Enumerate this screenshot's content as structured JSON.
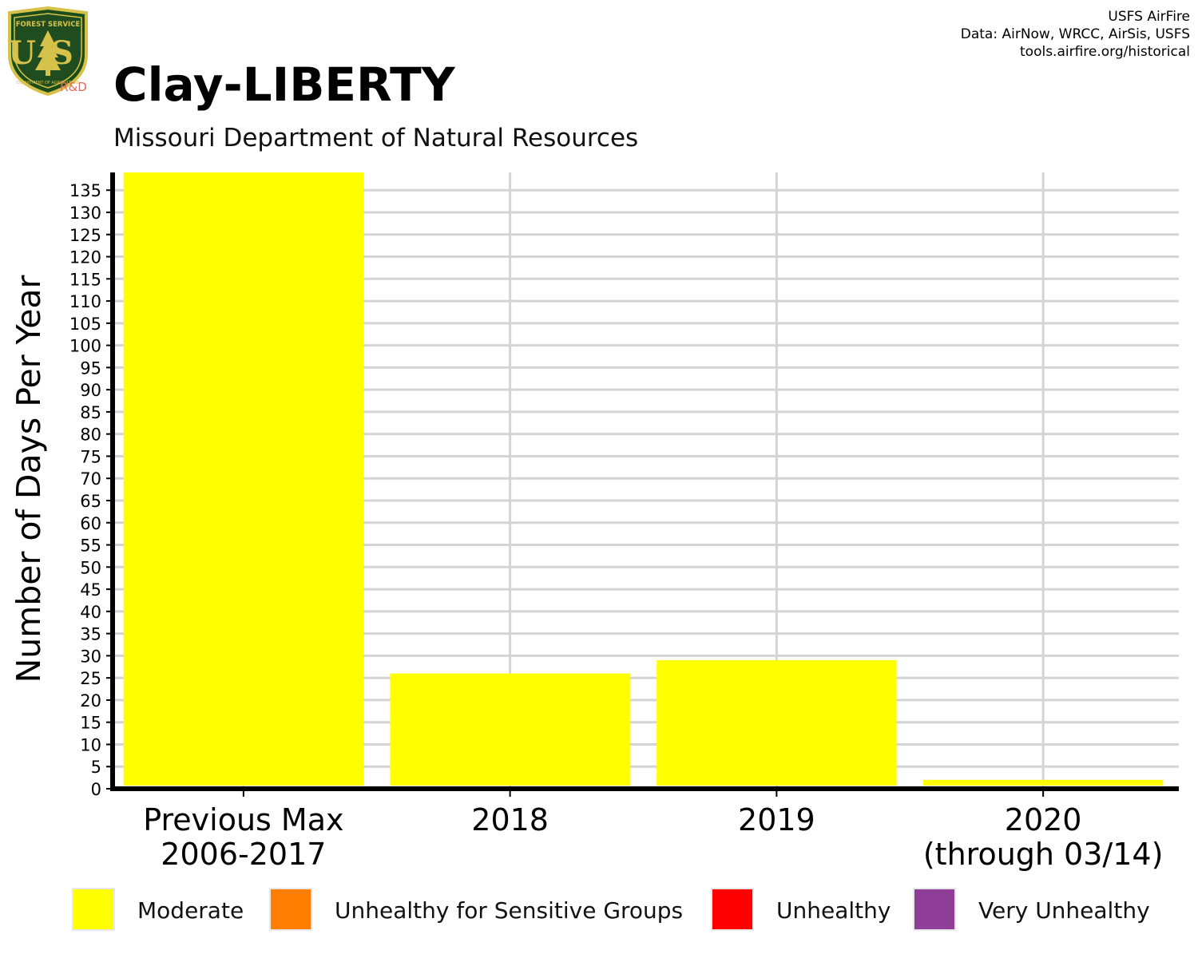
{
  "header": {
    "title": "Clay-LIBERTY",
    "subtitle": "Missouri Department of Natural Resources",
    "credits": [
      "USFS AirFire",
      "Data: AirNow, WRCC, AirSis, USFS",
      "tools.airfire.org/historical"
    ]
  },
  "logo": {
    "text_top": "FOREST SERVICE",
    "letters": "US",
    "text_bottom": "DEPARTMENT OF AGRICULTURE",
    "tag": "R&D"
  },
  "colors": {
    "moderate": "#ffff00",
    "usg": "#ff7e00",
    "unhealthy": "#ff0000",
    "very_unhealthy": "#8f3f97",
    "grid": "#d4d4d4",
    "axis": "#000000"
  },
  "chart_data": {
    "type": "bar",
    "ylabel": "Number of Days Per Year",
    "categories": [
      [
        "Previous Max",
        "2006-2017"
      ],
      [
        "2018"
      ],
      [
        "2019"
      ],
      [
        "2020",
        "(through 03/14)"
      ]
    ],
    "series": [
      {
        "name": "Moderate",
        "color": "#ffff00",
        "values": [
          139,
          26,
          29,
          2
        ]
      },
      {
        "name": "Unhealthy for Sensitive Groups",
        "color": "#ff7e00",
        "values": [
          0,
          0,
          0,
          0
        ]
      },
      {
        "name": "Unhealthy",
        "color": "#ff0000",
        "values": [
          0,
          0,
          0,
          0
        ]
      },
      {
        "name": "Very Unhealthy",
        "color": "#8f3f97",
        "values": [
          0,
          0,
          0,
          0
        ]
      }
    ],
    "ylim": [
      0,
      139
    ],
    "yticks": [
      0,
      5,
      10,
      15,
      20,
      25,
      30,
      35,
      40,
      45,
      50,
      55,
      60,
      65,
      70,
      75,
      80,
      85,
      90,
      95,
      100,
      105,
      110,
      115,
      120,
      125,
      130,
      135
    ],
    "grid": true,
    "legend_position": "bottom"
  },
  "legend": [
    {
      "label": "Moderate",
      "color": "#ffff00"
    },
    {
      "label": "Unhealthy for Sensitive Groups",
      "color": "#ff7e00"
    },
    {
      "label": "Unhealthy",
      "color": "#ff0000"
    },
    {
      "label": "Very Unhealthy",
      "color": "#8f3f97"
    }
  ]
}
